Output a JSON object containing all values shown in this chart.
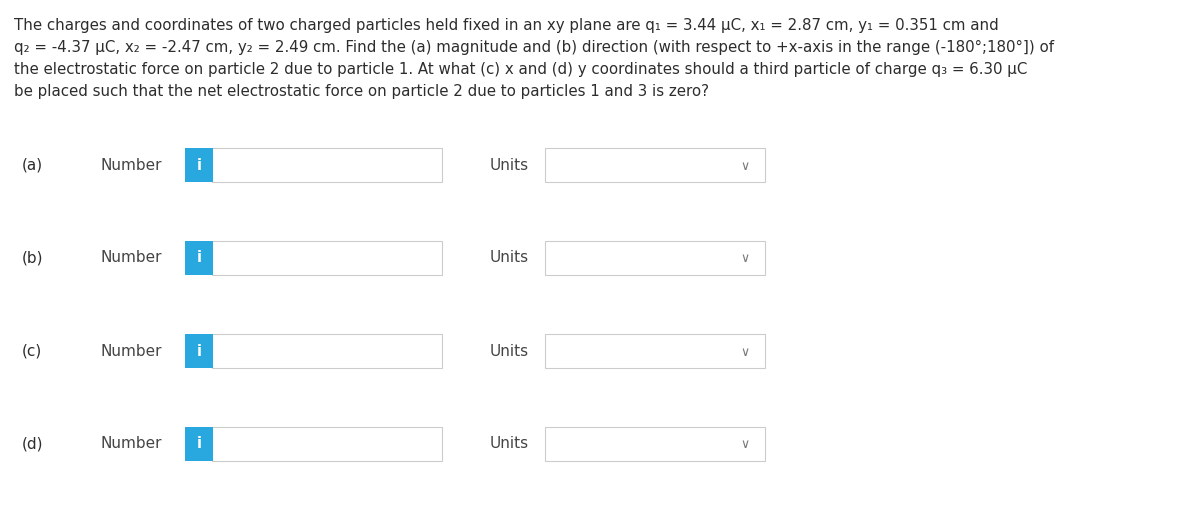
{
  "bg_color": "#ffffff",
  "text_color": "#2d2d2d",
  "paragraph_line1": "The charges and coordinates of two charged particles held fixed in an xy plane are q₁ = 3.44 μC, x₁ = 2.87 cm, y₁ = 0.351 cm and",
  "paragraph_line2": "q₂ = -4.37 μC, x₂ = -2.47 cm, y₂ = 2.49 cm. Find the (a) magnitude and (b) direction (with respect to +x-axis in the range (-180°;180°]) of",
  "paragraph_line3": "the electrostatic force on particle 2 due to particle 1. At what (c) x and (d) y coordinates should a third particle of charge q₃ = 6.30 μC",
  "paragraph_line4": "be placed such that the net electrostatic force on particle 2 due to particles 1 and 3 is zero?",
  "rows": [
    {
      "label": "(a)",
      "text": "Number",
      "units_label": "Units"
    },
    {
      "label": "(b)",
      "text": "Number",
      "units_label": "Units"
    },
    {
      "label": "(c)",
      "text": "Number",
      "units_label": "Units"
    },
    {
      "label": "(d)",
      "text": "Number",
      "units_label": "Units"
    }
  ],
  "input_box_color": "#ffffff",
  "input_box_border": "#cccccc",
  "icon_bg_color": "#29a8e0",
  "icon_text_color": "#ffffff",
  "icon_text": "i",
  "units_box_color": "#ffffff",
  "units_box_border": "#cccccc",
  "number_label_color": "#444444",
  "units_label_color": "#444444",
  "row_label_color": "#2d2d2d",
  "paragraph_fontsize": 10.8,
  "row_fontsize": 11.0,
  "fig_width": 12.0,
  "fig_height": 5.16,
  "dpi": 100
}
